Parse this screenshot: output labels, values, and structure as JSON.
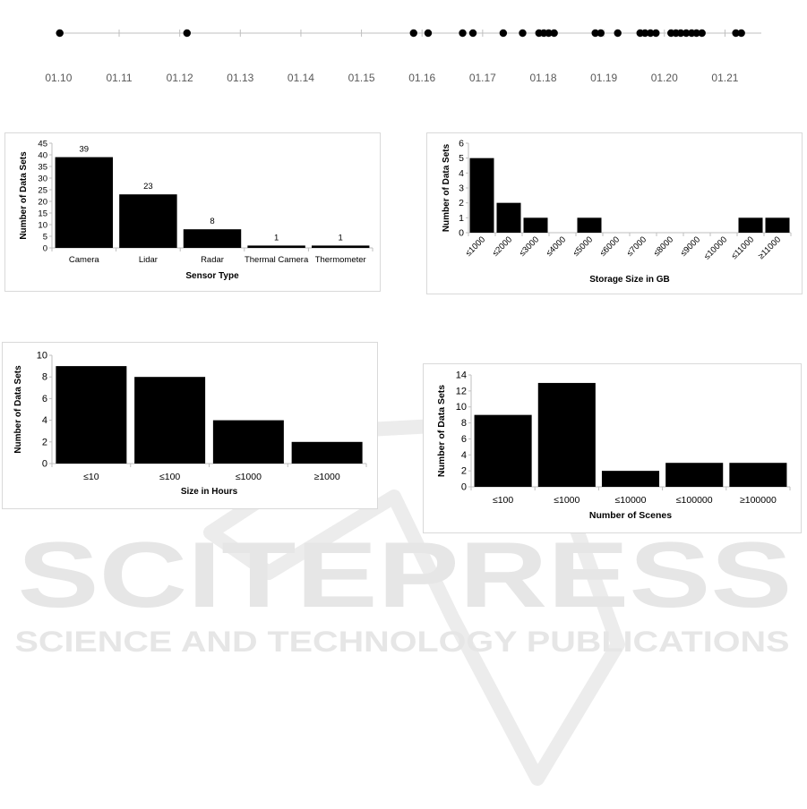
{
  "watermark": {
    "line1": "SCITEPRESS",
    "line2": "SCIENCE AND TECHNOLOGY PUBLICATIONS"
  },
  "chart_data": [
    {
      "id": "timeline",
      "type": "scatter",
      "title": "",
      "xlabel": "",
      "ylabel": "",
      "tick_labels": [
        "01.10",
        "01.11",
        "01.12",
        "01.13",
        "01.14",
        "01.15",
        "01.16",
        "01.17",
        "01.18",
        "01.19",
        "01.20",
        "01.21"
      ],
      "x": [
        2010.02,
        2012.12,
        2015.86,
        2016.1,
        2016.67,
        2016.84,
        2017.34,
        2017.66,
        2017.93,
        2018.01,
        2018.09,
        2018.18,
        2018.86,
        2018.95,
        2019.23,
        2019.6,
        2019.68,
        2019.77,
        2019.86,
        2020.11,
        2020.19,
        2020.27,
        2020.36,
        2020.45,
        2020.53,
        2020.62,
        2021.18,
        2021.27
      ],
      "xlim": [
        2009.95,
        2021.6
      ],
      "legend": "none"
    },
    {
      "id": "sensor-type",
      "type": "bar",
      "categories": [
        "Camera",
        "Lidar",
        "Radar",
        "Thermal Camera",
        "Thermometer"
      ],
      "values": [
        39,
        23,
        8,
        1,
        1
      ],
      "data_labels": [
        "39",
        "23",
        "8",
        "1",
        "1"
      ],
      "xlabel": "Sensor Type",
      "ylabel": "Number of Data Sets",
      "yticks": [
        "0",
        "5",
        "10",
        "15",
        "20",
        "25",
        "30",
        "35",
        "40",
        "45"
      ],
      "ylim": [
        0,
        45
      ]
    },
    {
      "id": "storage-size",
      "type": "bar",
      "categories": [
        "≤1000",
        "≤2000",
        "≤3000",
        "≤4000",
        "≤5000",
        "≤6000",
        "≤7000",
        "≤8000",
        "≤9000",
        "≤10000",
        "≤11000",
        "≥11000"
      ],
      "values": [
        5,
        2,
        1,
        0,
        1,
        0,
        0,
        0,
        0,
        0,
        1,
        1
      ],
      "xlabel": "Storage Size in GB",
      "ylabel": "Number of Data Sets",
      "yticks": [
        "0",
        "1",
        "2",
        "3",
        "4",
        "5",
        "6"
      ],
      "ylim": [
        0,
        6
      ]
    },
    {
      "id": "size-hours",
      "type": "bar",
      "categories": [
        "≤10",
        "≤100",
        "≤1000",
        "≥1000"
      ],
      "values": [
        9,
        8,
        4,
        2
      ],
      "xlabel": "Size in Hours",
      "ylabel": "Number of Data Sets",
      "yticks": [
        "0",
        "2",
        "4",
        "6",
        "8",
        "10"
      ],
      "ylim": [
        0,
        10
      ]
    },
    {
      "id": "num-scenes",
      "type": "bar",
      "categories": [
        "≤100",
        "≤1000",
        "≤10000",
        "≤100000",
        "≥100000"
      ],
      "values": [
        9,
        13,
        2,
        3,
        3
      ],
      "xlabel": "Number of Scenes",
      "ylabel": "Number of Data Sets",
      "yticks": [
        "0",
        "2",
        "4",
        "6",
        "8",
        "10",
        "12",
        "14"
      ],
      "ylim": [
        0,
        14
      ]
    }
  ]
}
